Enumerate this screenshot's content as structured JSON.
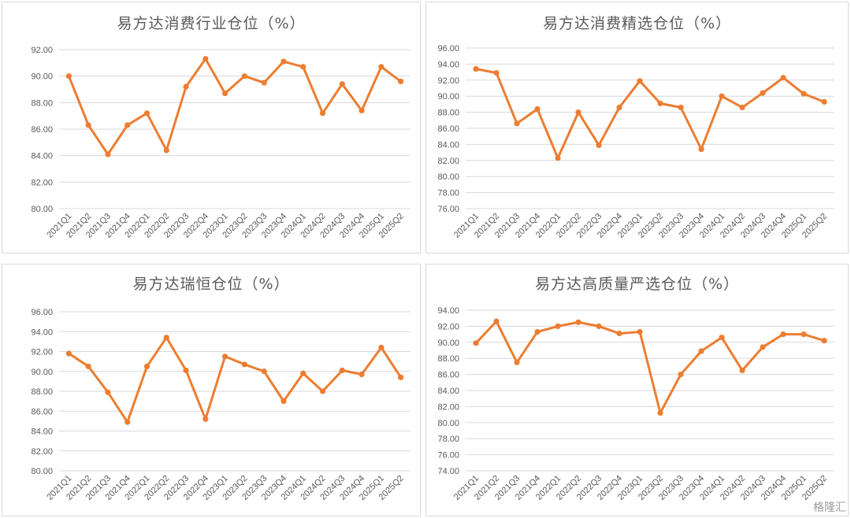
{
  "colors": {
    "line": "#ED7D31",
    "grid": "#D9D9D9",
    "tick_text": "#595959",
    "title_text": "#595959"
  },
  "watermark": "格隆汇",
  "chart_data": [
    {
      "type": "line",
      "title": "易方达消费行业仓位（%）",
      "categories": [
        "2021Q1",
        "2021Q2",
        "2021Q3",
        "2021Q4",
        "2022Q1",
        "2022Q2",
        "2022Q3",
        "2022Q4",
        "2023Q1",
        "2023Q2",
        "2023Q3",
        "2023Q4",
        "2024Q1",
        "2024Q2",
        "2024Q3",
        "2024Q4",
        "2025Q1",
        "2025Q2"
      ],
      "values": [
        90.0,
        86.3,
        84.1,
        86.3,
        87.2,
        84.4,
        89.2,
        91.3,
        88.7,
        90.0,
        89.5,
        91.1,
        90.7,
        87.2,
        89.4,
        87.4,
        90.7,
        89.6
      ],
      "ylim": [
        80,
        92
      ],
      "yticks": [
        80,
        82,
        84,
        86,
        88,
        90,
        92
      ],
      "grid": true,
      "legend": "none"
    },
    {
      "type": "line",
      "title": "易方达消费精选仓位（%）",
      "categories": [
        "2021Q1",
        "2021Q2",
        "2021Q3",
        "2021Q4",
        "2022Q1",
        "2022Q2",
        "2022Q3",
        "2022Q4",
        "2023Q1",
        "2023Q2",
        "2023Q3",
        "2023Q4",
        "2024Q1",
        "2024Q2",
        "2024Q3",
        "2024Q4",
        "2025Q1",
        "2025Q2"
      ],
      "values": [
        93.4,
        92.9,
        86.6,
        88.4,
        82.3,
        88.0,
        83.9,
        88.6,
        91.9,
        89.1,
        88.6,
        83.4,
        90.0,
        88.6,
        90.4,
        92.3,
        90.3,
        89.3
      ],
      "ylim": [
        76,
        96
      ],
      "yticks": [
        76,
        78,
        80,
        82,
        84,
        86,
        88,
        90,
        92,
        94,
        96
      ],
      "grid": true,
      "legend": "none"
    },
    {
      "type": "line",
      "title": "易方达瑞恒仓位（%）",
      "categories": [
        "2021Q1",
        "2021Q2",
        "2021Q3",
        "2021Q4",
        "2022Q1",
        "2022Q2",
        "2022Q3",
        "2022Q4",
        "2023Q1",
        "2023Q2",
        "2023Q3",
        "2023Q4",
        "2024Q1",
        "2024Q2",
        "2024Q3",
        "2024Q4",
        "2025Q1",
        "2025Q2"
      ],
      "values": [
        91.8,
        90.5,
        87.9,
        84.9,
        90.5,
        93.4,
        90.1,
        85.2,
        91.5,
        90.7,
        90.0,
        87.0,
        89.8,
        88.0,
        90.1,
        89.7,
        92.4,
        89.4
      ],
      "ylim": [
        80,
        96
      ],
      "yticks": [
        80,
        82,
        84,
        86,
        88,
        90,
        92,
        94,
        96
      ],
      "grid": true,
      "legend": "none"
    },
    {
      "type": "line",
      "title": "易方达高质量严选仓位（%）",
      "categories": [
        "2021Q1",
        "2021Q2",
        "2021Q3",
        "2021Q4",
        "2022Q1",
        "2022Q2",
        "2022Q3",
        "2022Q4",
        "2023Q1",
        "2023Q2",
        "2023Q3",
        "2023Q4",
        "2024Q1",
        "2024Q2",
        "2024Q3",
        "2024Q4",
        "2025Q1",
        "2025Q2"
      ],
      "values": [
        89.9,
        92.6,
        87.5,
        91.3,
        92.0,
        92.5,
        92.0,
        91.1,
        91.3,
        81.2,
        86.0,
        88.9,
        90.6,
        86.5,
        89.4,
        91.0,
        91.0,
        90.2
      ],
      "ylim": [
        74,
        94
      ],
      "yticks": [
        74,
        76,
        78,
        80,
        82,
        84,
        86,
        88,
        90,
        92,
        94
      ],
      "grid": true,
      "legend": "none"
    }
  ]
}
